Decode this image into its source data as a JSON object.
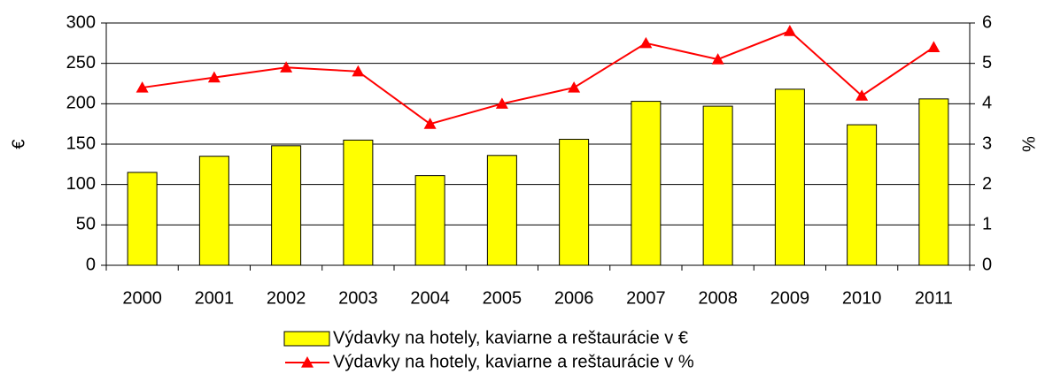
{
  "chart_data": {
    "type": "bar-line",
    "categories": [
      "2000",
      "2001",
      "2002",
      "2003",
      "2004",
      "2005",
      "2006",
      "2007",
      "2008",
      "2009",
      "2010",
      "2011"
    ],
    "series": [
      {
        "name": "Výdavky na hotely, kaviarne a reštaurácie v €",
        "type": "bar",
        "color": "#ffff00",
        "values": [
          115,
          135,
          148,
          155,
          111,
          136,
          156,
          203,
          197,
          218,
          174,
          206
        ]
      },
      {
        "name": "Výdavky na hotely, kaviarne a reštaurácie v %",
        "type": "line",
        "color": "#ff0000",
        "axis": "y2",
        "values": [
          4.4,
          4.65,
          4.9,
          4.8,
          3.5,
          4.0,
          4.4,
          5.5,
          5.1,
          5.8,
          4.2,
          5.4
        ]
      }
    ],
    "ylabel": "€",
    "y2label": "%",
    "ylim": [
      0,
      300
    ],
    "yticks": [
      0,
      50,
      100,
      150,
      200,
      250,
      300
    ],
    "y2lim": [
      0,
      6
    ],
    "y2ticks": [
      0,
      1,
      2,
      3,
      4,
      5,
      6
    ],
    "grid": true
  }
}
